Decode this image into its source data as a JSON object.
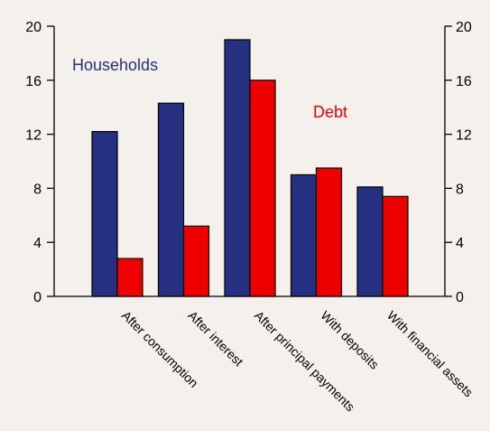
{
  "chart_data": {
    "type": "bar",
    "categories": [
      "After consumption",
      "After interest",
      "After principal payments",
      "With deposits",
      "With financial assets"
    ],
    "series": [
      {
        "name": "Households",
        "values": [
          12.2,
          14.3,
          19.0,
          9.0,
          8.1
        ],
        "color": "#263080"
      },
      {
        "name": "Debt",
        "values": [
          2.8,
          5.2,
          16.0,
          9.5,
          7.4
        ],
        "color": "#ee0000"
      }
    ],
    "ylim": [
      0,
      20
    ],
    "yticks": [
      0,
      4,
      8,
      12,
      16,
      20
    ],
    "yticks_right": [
      0,
      4,
      8,
      12,
      16,
      20
    ],
    "grid": false,
    "legend": "inline"
  }
}
